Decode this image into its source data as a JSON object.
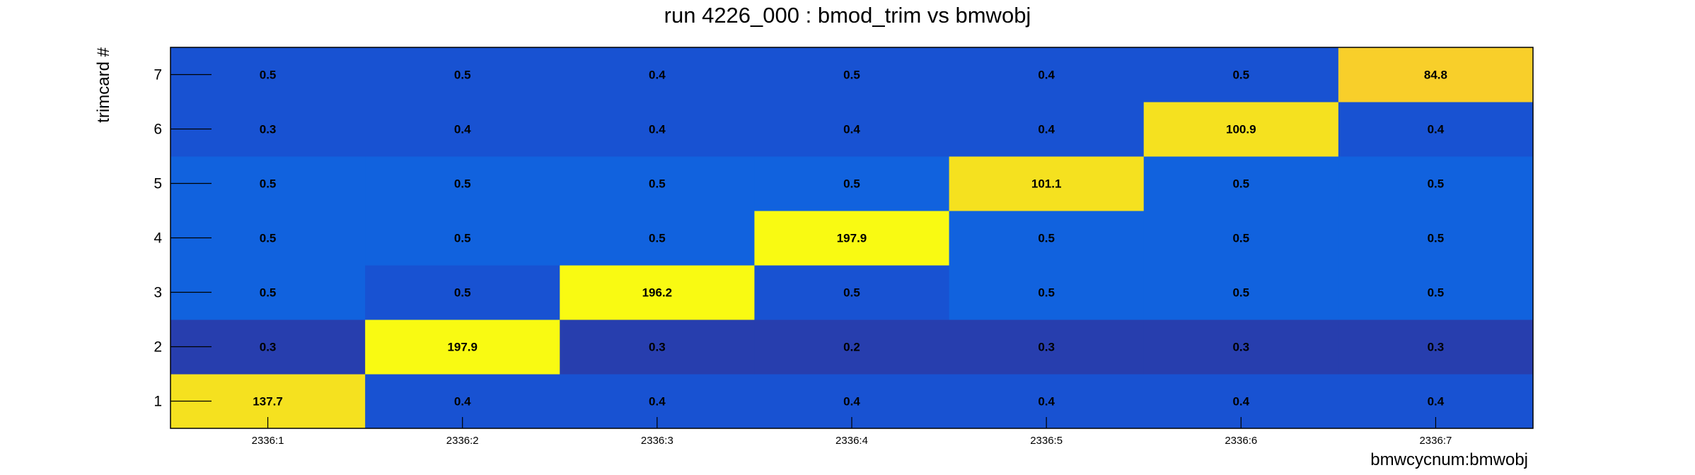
{
  "chart_data": {
    "type": "heatmap",
    "title": "run 4226_000 : bmod_trim vs bmwobj",
    "xlabel": "bmwcycnum:bmwobj",
    "ylabel": "trimcard #",
    "x_categories": [
      "2336:1",
      "2336:2",
      "2336:3",
      "2336:4",
      "2336:5",
      "2336:6",
      "2336:7"
    ],
    "y_categories": [
      "1",
      "2",
      "3",
      "4",
      "5",
      "6",
      "7"
    ],
    "values": [
      [
        137.7,
        0.4,
        0.4,
        0.4,
        0.4,
        0.4,
        0.4
      ],
      [
        0.3,
        197.9,
        0.3,
        0.2,
        0.3,
        0.3,
        0.3
      ],
      [
        0.5,
        0.5,
        196.2,
        0.5,
        0.5,
        0.5,
        0.5
      ],
      [
        0.5,
        0.5,
        0.5,
        197.9,
        0.5,
        0.5,
        0.5
      ],
      [
        0.5,
        0.5,
        0.5,
        0.5,
        101.1,
        0.5,
        0.5
      ],
      [
        0.3,
        0.4,
        0.4,
        0.4,
        0.4,
        100.9,
        0.4
      ],
      [
        0.5,
        0.5,
        0.4,
        0.5,
        0.4,
        0.5,
        84.8
      ]
    ],
    "cell_colors": [
      [
        "#F5E11F",
        "#1852D2",
        "#1852D2",
        "#1852D2",
        "#1852D2",
        "#1852D2",
        "#1852D2"
      ],
      [
        "#273EAE",
        "#F9FA12",
        "#273EAE",
        "#273EAE",
        "#273EAE",
        "#273EAE",
        "#273EAE"
      ],
      [
        "#1162DE",
        "#1852D2",
        "#F9FA12",
        "#1852D2",
        "#1162DE",
        "#1162DE",
        "#1162DE"
      ],
      [
        "#1162DE",
        "#1162DE",
        "#1162DE",
        "#F9FA12",
        "#1162DE",
        "#1162DE",
        "#1162DE"
      ],
      [
        "#1162DE",
        "#1162DE",
        "#1162DE",
        "#1162DE",
        "#F5E11F",
        "#1162DE",
        "#1162DE"
      ],
      [
        "#1852D2",
        "#1852D2",
        "#1852D2",
        "#1852D2",
        "#1852D2",
        "#F5E11F",
        "#1852D2"
      ],
      [
        "#1852D2",
        "#1852D2",
        "#1852D2",
        "#1852D2",
        "#1852D2",
        "#1852D2",
        "#F8CF2A"
      ]
    ],
    "grid": false
  }
}
